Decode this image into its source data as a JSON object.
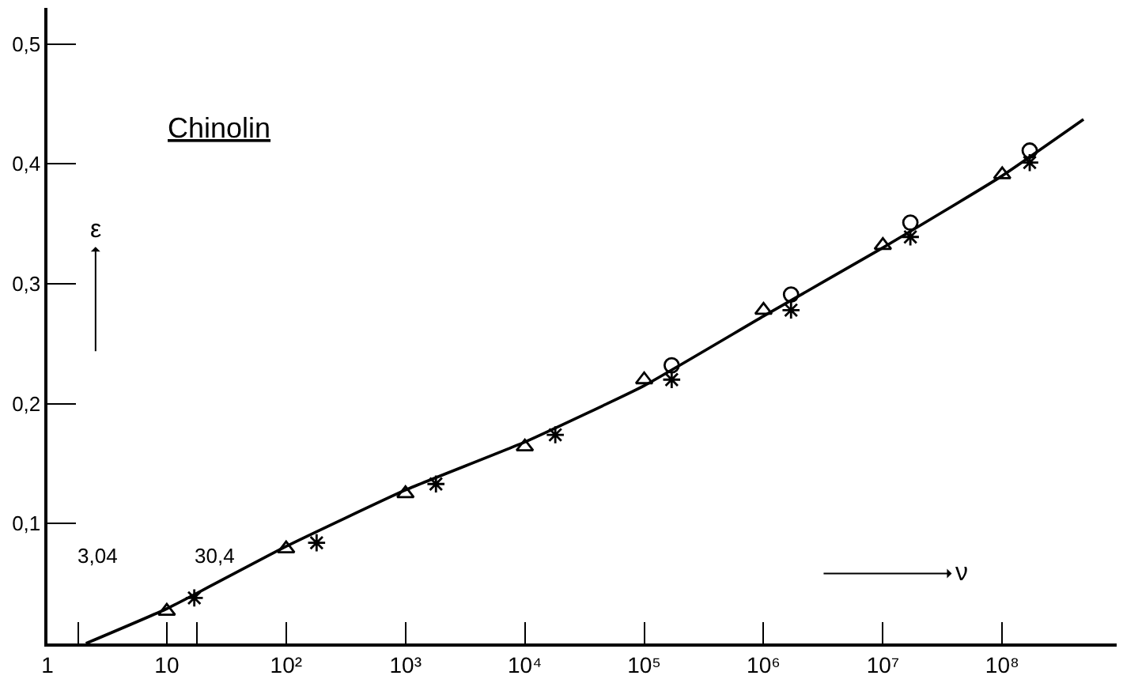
{
  "chart_data": {
    "type": "scatter",
    "xlabel": "ν",
    "ylabel": "ε",
    "log": "x",
    "xlim": [
      1,
      910000000
    ],
    "ylim": [
      0,
      0.53
    ],
    "xticks": [
      {
        "value": 1,
        "label": "1"
      },
      {
        "value": 10,
        "label": "10"
      },
      {
        "value": 100,
        "label": "10²"
      },
      {
        "value": 1000,
        "label": "10³"
      },
      {
        "value": 10000,
        "label": "10⁴"
      },
      {
        "value": 100000,
        "label": "10⁵"
      },
      {
        "value": 1000000,
        "label": "10⁶"
      },
      {
        "value": 10000000,
        "label": "10⁷"
      },
      {
        "value": 100000000,
        "label": "10⁸"
      },
      {
        "value": 1.8,
        "label": null
      },
      {
        "value": 18,
        "label": null
      }
    ],
    "yticks": [
      {
        "value": 0.1,
        "label": "0,1"
      },
      {
        "value": 0.2,
        "label": "0,2"
      },
      {
        "value": 0.3,
        "label": "0,3"
      },
      {
        "value": 0.4,
        "label": "0,4"
      },
      {
        "value": 0.5,
        "label": "0,5"
      }
    ],
    "annotations": [
      "Chinolin",
      "3,04",
      "30,4"
    ],
    "series": [
      {
        "type": "line",
        "color": "#000000",
        "marker": "none",
        "line_style": "solid",
        "x": [
          2.1,
          10,
          100,
          1000,
          10000,
          100000,
          1000000,
          10000000,
          100000000,
          480000000
        ],
        "values": [
          0,
          0.029,
          0.081,
          0.128,
          0.168,
          0.215,
          0.273,
          0.33,
          0.39,
          0.437
        ]
      },
      {
        "color": "#000000",
        "marker": "triangle",
        "x": [
          10,
          100,
          1000,
          10000,
          100000,
          1000000,
          10000000,
          100000000
        ],
        "values": [
          0.027,
          0.079,
          0.125,
          0.164,
          0.22,
          0.278,
          0.332,
          0.391
        ]
      },
      {
        "color": "#000000",
        "marker": "cross",
        "x": [
          17,
          180,
          1800,
          18000,
          170000,
          1700000,
          17000000,
          170000000
        ],
        "values": [
          0.038,
          0.084,
          0.133,
          0.174,
          0.22,
          0.278,
          0.339,
          0.401
        ]
      },
      {
        "color": "#000000",
        "marker": "circle",
        "x": [
          170000,
          1700000,
          17000000,
          170000000
        ],
        "values": [
          0.232,
          0.291,
          0.351,
          0.411
        ]
      }
    ]
  }
}
